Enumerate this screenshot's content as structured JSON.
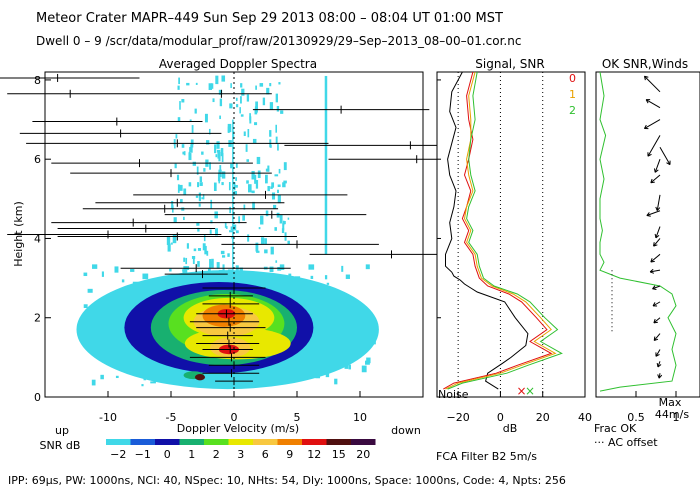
{
  "header": {
    "line1": "Meteor Crater   MAPR–449   Sun Sep 29 2013 08:00 – 08:04 UT 01:00 MST",
    "line2": "Dwell   0  –   9    /scr/data/modular_prof/raw/20130929/29–Sep–2013_08–00–01.cor.nc"
  },
  "footer": {
    "params": "IPP: 69μs,  PW: 1000ns,  NCI: 40,  NSpec: 10, NHts: 54,  Dly: 1000ns,  Space: 1000ns,  Code: 4,  Npts: 256"
  },
  "colorbar": {
    "label_top": "up",
    "label_bottom": "SNR dB",
    "label_right": "down",
    "values": [
      "−2",
      "−1",
      "0",
      "1",
      "2",
      "3",
      "6",
      "9",
      "12",
      "15",
      "20"
    ],
    "colors": [
      "#40d8e8",
      "#1a5cd8",
      "#1010a8",
      "#18b070",
      "#58e020",
      "#e8e800",
      "#f8c840",
      "#f08000",
      "#e01010",
      "#501010",
      "#3a0a40"
    ]
  },
  "ok_panel": {
    "frac_ok": "Frac OK",
    "ac_offset": "··· AC offset",
    "max_label": "Max",
    "max_value": "44m/s",
    "fca": "FCA Filter B2   5m/s"
  },
  "chart_data": [
    {
      "type": "heatmap",
      "title": "Averaged Doppler Spectra",
      "xlabel": "Doppler Velocity (m/s)",
      "ylabel": "Height (km)",
      "xlim": [
        -15,
        15
      ],
      "ylim": [
        0,
        8.2
      ],
      "xticks": [
        -10,
        -5,
        0,
        5,
        10
      ],
      "yticks": [
        0,
        2,
        4,
        6,
        8
      ],
      "blobs": [
        {
          "v": -1.2,
          "h": 1.75,
          "rv": 7.5,
          "rh": 1.15,
          "level": 2
        },
        {
          "v": -0.8,
          "h": 1.75,
          "rv": 5.8,
          "rh": 0.95,
          "level": 3
        },
        {
          "v": -0.6,
          "h": 1.85,
          "rv": 4.6,
          "rh": 0.75,
          "level": 4
        },
        {
          "v": -0.4,
          "h": 2.0,
          "rv": 3.6,
          "rh": 0.5,
          "level": 5
        },
        {
          "v": 0.3,
          "h": 1.35,
          "rv": 4.2,
          "rh": 0.4,
          "level": 5
        },
        {
          "v": -0.6,
          "h": 1.9,
          "rv": 2.6,
          "rh": 0.38,
          "level": 6
        },
        {
          "v": -0.3,
          "h": 1.25,
          "rv": 1.6,
          "rh": 0.25,
          "level": 6
        },
        {
          "v": -0.8,
          "h": 2.05,
          "rv": 1.7,
          "rh": 0.28,
          "level": 7
        },
        {
          "v": -0.4,
          "h": 1.2,
          "rv": 0.8,
          "rh": 0.12,
          "level": 8
        },
        {
          "v": -0.6,
          "h": 2.1,
          "rv": 0.7,
          "rh": 0.12,
          "level": 8
        }
      ],
      "wind_segments": [
        {
          "h": 8.05,
          "v1": -20,
          "v2": -7.5,
          "tick": -14
        },
        {
          "h": 7.65,
          "v1": -18,
          "v2": -7.5,
          "tick": -13
        },
        {
          "h": 7.65,
          "v1": -7.5,
          "v2": 3.0,
          "tick": -1.0
        },
        {
          "h": 7.25,
          "v1": 1.5,
          "v2": 15.5,
          "tick": 8.5
        },
        {
          "h": 6.95,
          "v1": -16,
          "v2": -2.5,
          "tick": -9.3
        },
        {
          "h": 6.65,
          "v1": -17,
          "v2": -1.0,
          "tick": -9.0
        },
        {
          "h": 6.4,
          "v1": -16.5,
          "v2": 7.5,
          "tick": -4.5
        },
        {
          "h": 6.35,
          "v1": 4.0,
          "v2": 20.0,
          "tick": 14.0
        },
        {
          "h": 6.0,
          "v1": 7.5,
          "v2": 20.0,
          "tick": 14.5
        },
        {
          "h": 5.9,
          "v1": -14.5,
          "v2": 1.5,
          "tick": -7.5
        },
        {
          "h": 5.65,
          "v1": -13.0,
          "v2": 3.0,
          "tick": -5.0
        },
        {
          "h": 5.1,
          "v1": -8.0,
          "v2": 9.0,
          "tick": 2.5
        },
        {
          "h": 4.9,
          "v1": -11.0,
          "v2": 4.0,
          "tick": -4.5
        },
        {
          "h": 4.75,
          "v1": -12.0,
          "v2": 3.5,
          "tick": -5.5
        },
        {
          "h": 4.6,
          "v1": -5.5,
          "v2": 10.5,
          "tick": 3.0
        },
        {
          "h": 4.4,
          "v1": -14.5,
          "v2": 1.0,
          "tick": -8.0
        },
        {
          "h": 4.25,
          "v1": -14.0,
          "v2": -1.5,
          "tick": -7.0
        },
        {
          "h": 4.1,
          "v1": -18.0,
          "v2": -1.0,
          "tick": -10.0
        },
        {
          "h": 4.05,
          "v1": -14.0,
          "v2": 5.0,
          "tick": -4.5
        },
        {
          "h": 3.85,
          "v1": -1.0,
          "v2": 11.5,
          "tick": 5.0
        },
        {
          "h": 3.6,
          "v1": 6.0,
          "v2": 20.0,
          "tick": 12.5
        },
        {
          "h": 3.25,
          "v1": -9.0,
          "v2": 4.5,
          "tick": -3.0
        },
        {
          "h": 3.1,
          "v1": -5.5,
          "v2": -0.5,
          "tick": -2.5
        },
        {
          "h": 2.75,
          "v1": -2.5,
          "v2": 2.5,
          "tick": 0.0
        },
        {
          "h": 2.55,
          "v1": -2.0,
          "v2": 1.5,
          "tick": -0.3
        },
        {
          "h": 2.35,
          "v1": -2.5,
          "v2": 2.0,
          "tick": -0.3
        },
        {
          "h": 2.1,
          "v1": -3.0,
          "v2": 1.5,
          "tick": -0.6
        },
        {
          "h": 1.9,
          "v1": -3.5,
          "v2": 2.0,
          "tick": -0.4
        },
        {
          "h": 1.75,
          "v1": -3.0,
          "v2": 2.5,
          "tick": -0.3
        },
        {
          "h": 1.55,
          "v1": -2.5,
          "v2": 1.5,
          "tick": -0.5
        },
        {
          "h": 1.35,
          "v1": -3.0,
          "v2": 2.0,
          "tick": -0.4
        },
        {
          "h": 1.2,
          "v1": -2.5,
          "v2": 1.5,
          "tick": -0.3
        },
        {
          "h": 1.0,
          "v1": -3.5,
          "v2": 2.5,
          "tick": -0.2
        },
        {
          "h": 0.8,
          "v1": -2.0,
          "v2": 2.0,
          "tick": 0.0
        },
        {
          "h": 0.6,
          "v1": -2.5,
          "v2": 2.0,
          "tick": -0.2
        },
        {
          "h": 0.4,
          "v1": -1.5,
          "v2": 1.5,
          "tick": 0.0
        }
      ]
    },
    {
      "type": "line",
      "title": "Signal, SNR",
      "xlabel": "dB",
      "ylabel": "Height (km)",
      "xlim": [
        -30,
        40
      ],
      "ylim": [
        0,
        8.2
      ],
      "xticks": [
        -20,
        0,
        20,
        40
      ],
      "grid_x": [
        -20,
        0,
        20
      ],
      "annotation": "Noise",
      "legend": [
        "0",
        "1",
        "2"
      ],
      "series": [
        {
          "name": "Noise",
          "color": "#000000",
          "x": [
            -18,
            -23,
            -24,
            -21,
            -23,
            -25,
            -24,
            -21,
            -22,
            -24,
            -23,
            -26,
            -26,
            -23,
            -22,
            -19,
            -17,
            -14,
            -11,
            2,
            7,
            13,
            12,
            5,
            1,
            -6,
            -7,
            -1
          ],
          "y": [
            8.2,
            7.7,
            7.2,
            6.8,
            6.4,
            6.0,
            5.6,
            5.2,
            4.8,
            4.4,
            4.0,
            3.6,
            3.3,
            3.15,
            3.05,
            2.95,
            2.85,
            2.75,
            2.65,
            2.4,
            2.0,
            1.6,
            1.3,
            1.0,
            0.85,
            0.6,
            0.4,
            0.2
          ]
        },
        {
          "name": "0",
          "color": "#e01010",
          "x": [
            -13,
            -16,
            -15,
            -13,
            -15,
            -17,
            -14,
            -16,
            -18,
            -15,
            -17,
            -13,
            -12,
            -10,
            -6,
            4,
            10,
            17,
            22,
            14,
            24,
            8,
            -2,
            -22,
            -27
          ],
          "y": [
            8.2,
            7.6,
            7.0,
            6.5,
            6.0,
            5.6,
            5.2,
            4.8,
            4.5,
            4.2,
            3.9,
            3.6,
            3.3,
            3.0,
            2.8,
            2.6,
            2.4,
            2.0,
            1.7,
            1.4,
            1.1,
            0.8,
            0.6,
            0.35,
            0.2
          ]
        },
        {
          "name": "1",
          "color": "#e8a000",
          "x": [
            -12,
            -15,
            -14,
            -14,
            -16,
            -15,
            -13,
            -16,
            -17,
            -14,
            -16,
            -12,
            -11,
            -9,
            -4,
            6,
            12,
            19,
            24,
            16,
            26,
            10,
            0,
            -20,
            -26
          ],
          "y": [
            8.2,
            7.6,
            7.0,
            6.5,
            6.0,
            5.6,
            5.2,
            4.8,
            4.5,
            4.2,
            3.9,
            3.6,
            3.3,
            3.0,
            2.8,
            2.6,
            2.4,
            2.0,
            1.7,
            1.4,
            1.1,
            0.8,
            0.6,
            0.35,
            0.2
          ]
        },
        {
          "name": "2",
          "color": "#30c030",
          "x": [
            -11,
            -13,
            -12,
            -14,
            -15,
            -14,
            -12,
            -15,
            -16,
            -13,
            -15,
            -11,
            -10,
            -8,
            -3,
            8,
            14,
            21,
            27,
            19,
            29,
            13,
            3,
            -18,
            -25
          ],
          "y": [
            8.2,
            7.6,
            7.0,
            6.5,
            6.0,
            5.6,
            5.2,
            4.8,
            4.5,
            4.2,
            3.9,
            3.6,
            3.3,
            3.0,
            2.8,
            2.6,
            2.4,
            2.0,
            1.7,
            1.4,
            1.1,
            0.8,
            0.6,
            0.35,
            0.2
          ]
        }
      ]
    },
    {
      "type": "line",
      "title": "OK SNR,Winds",
      "xlabel": "Frac OK",
      "xlim": [
        0,
        1.3
      ],
      "ylim": [
        0,
        8.2
      ],
      "xticks": [
        0.5,
        1
      ],
      "xtick_labels": [
        "0.5",
        "1"
      ],
      "series": [
        {
          "name": "Frac OK",
          "color": "#30c030",
          "x": [
            0.05,
            0.1,
            0.05,
            0.12,
            0.05,
            0.1,
            0.05,
            0.05,
            0.08,
            0.05,
            0.05,
            0.1,
            0.05,
            0.3,
            0.8,
            0.95,
            1.0,
            0.9,
            1.0,
            0.95,
            1.0,
            0.95,
            0.3,
            0.05
          ],
          "y": [
            8.2,
            7.6,
            7.0,
            6.6,
            6.0,
            5.5,
            5.0,
            4.5,
            4.2,
            3.9,
            3.6,
            3.4,
            3.2,
            3.0,
            2.8,
            2.6,
            2.3,
            2.0,
            1.6,
            1.2,
            0.8,
            0.4,
            0.25,
            0.15
          ]
        },
        {
          "name": "AC offset",
          "color": "#000000",
          "x": [
            0.2,
            0.2,
            0.2
          ],
          "y": [
            3.2,
            2.4,
            1.6
          ]
        }
      ],
      "wind_barbs": [
        {
          "h": 7.7,
          "dir": 315,
          "len": 22
        },
        {
          "h": 7.3,
          "dir": 300,
          "len": 16
        },
        {
          "h": 7.0,
          "dir": 240,
          "len": 18
        },
        {
          "h": 6.6,
          "dir": 210,
          "len": 24
        },
        {
          "h": 6.3,
          "dir": 150,
          "len": 20
        },
        {
          "h": 6.0,
          "dir": 200,
          "len": 14
        },
        {
          "h": 5.6,
          "dir": 230,
          "len": 12
        },
        {
          "h": 5.1,
          "dir": 190,
          "len": 16
        },
        {
          "h": 4.7,
          "dir": 250,
          "len": 14
        },
        {
          "h": 4.3,
          "dir": 200,
          "len": 12
        },
        {
          "h": 4.0,
          "dir": 220,
          "len": 10
        },
        {
          "h": 3.6,
          "dir": 230,
          "len": 12
        },
        {
          "h": 3.2,
          "dir": 260,
          "len": 10
        },
        {
          "h": 2.8,
          "dir": 250,
          "len": 8
        },
        {
          "h": 2.4,
          "dir": 240,
          "len": 8
        },
        {
          "h": 2.0,
          "dir": 230,
          "len": 8
        },
        {
          "h": 1.6,
          "dir": 220,
          "len": 9
        },
        {
          "h": 1.2,
          "dir": 210,
          "len": 8
        },
        {
          "h": 0.9,
          "dir": 200,
          "len": 6
        },
        {
          "h": 0.6,
          "dir": 190,
          "len": 5
        }
      ]
    }
  ]
}
